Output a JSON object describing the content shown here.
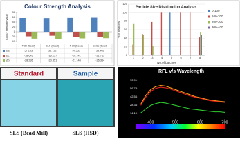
{
  "chart_data": [
    {
      "type": "bar",
      "title": "Colour Strength Analysis",
      "y_label": "Colour strength value",
      "categories": [
        "T-80 (Bead)",
        "SLS (Bead)",
        "T-80 (Bead)",
        "CoCo (Bead)"
      ],
      "series": [
        {
          "name": "ΔE",
          "color": "#4f81bd",
          "values": [
            57.153,
            56.722,
            57.553,
            58.462
          ]
        },
        {
          "name": "ΔL",
          "color": "#c0504d",
          "values": [
            -18.643,
            -16.137,
            -20.141,
            -21.715
          ]
        },
        {
          "name": "Δb",
          "color": "#9bbb59",
          "values": [
            -28.236,
            -30.851,
            -27.144,
            -26.354
          ]
        }
      ],
      "ylim": [
        -40,
        80
      ],
      "yticks": [
        -40,
        -20,
        0,
        20,
        40,
        60,
        80
      ],
      "data_table": true
    },
    {
      "type": "bar",
      "title": "Particle Size Distribution Analysis",
      "x_label": "No.of batches",
      "y_label": "% of particles",
      "x": [
        1,
        2,
        3,
        4,
        5,
        6,
        7,
        8
      ],
      "series": [
        {
          "name": "0-100",
          "color": "#4f81bd",
          "values": [
            0,
            0,
            0,
            0,
            100,
            0,
            0,
            0
          ]
        },
        {
          "name": "100-200",
          "color": "#c0504d",
          "values": [
            25,
            50,
            78,
            100,
            0,
            100,
            100,
            42
          ]
        },
        {
          "name": "200-300",
          "color": "#9bbb59",
          "values": [
            75,
            48,
            22,
            0,
            0,
            0,
            0,
            55
          ]
        },
        {
          "name": "300-400",
          "color": "#8064a2",
          "values": [
            0,
            0,
            0,
            0,
            0,
            0,
            0,
            48
          ]
        }
      ],
      "xlim": [
        0.5,
        8.5
      ],
      "xticks": [
        1,
        2,
        3,
        4,
        5,
        6,
        7,
        8
      ],
      "ylim": [
        0,
        120
      ],
      "yticks": [
        0,
        20,
        40,
        60,
        80,
        100,
        120
      ],
      "grid": true,
      "legend": "right"
    },
    {
      "type": "line",
      "title": "RFL v/s Wavelength",
      "x": [
        360,
        380,
        400,
        420,
        440,
        460,
        480,
        500,
        520,
        540,
        560,
        580,
        600,
        620,
        640,
        660,
        680,
        700
      ],
      "series": [
        {
          "name": "Standard",
          "color": "#ff9a1a",
          "values": [
            30,
            45,
            55,
            60,
            62,
            61,
            58,
            55,
            52,
            49,
            46,
            43,
            41,
            39,
            37,
            36,
            35,
            34
          ]
        },
        {
          "name": "Sample",
          "color": "#e0201a",
          "values": [
            28,
            42,
            52,
            57,
            59,
            58,
            56,
            53,
            50,
            47,
            44,
            42,
            40,
            38,
            36,
            35,
            34,
            33
          ]
        },
        {
          "name": "Reference",
          "color": "#2ecc2e",
          "values": [
            15,
            22,
            28,
            31,
            33,
            32,
            30,
            28,
            26,
            24,
            22,
            21,
            20,
            19,
            18,
            17,
            17,
            16
          ]
        }
      ],
      "xlim": [
        350,
        700
      ],
      "xticks": [
        400,
        500,
        600,
        700
      ],
      "ylim": [
        0,
        78
      ],
      "yticks": [
        {
          "value": 14.1,
          "label": "14.10"
        },
        {
          "value": 28.34,
          "label": "28.34"
        },
        {
          "value": 42.54,
          "label": "42.54"
        },
        {
          "value": 56.73,
          "label": "56.73"
        },
        {
          "value": 70.91,
          "label": "70.91"
        }
      ]
    }
  ],
  "swatches": [
    {
      "title": "Standard",
      "caption": "SLS (Bead Mill)",
      "color": "#86d3e6"
    },
    {
      "title": "Sample",
      "caption": "SLS (HSD)",
      "color": "#2aa3b3"
    }
  ]
}
